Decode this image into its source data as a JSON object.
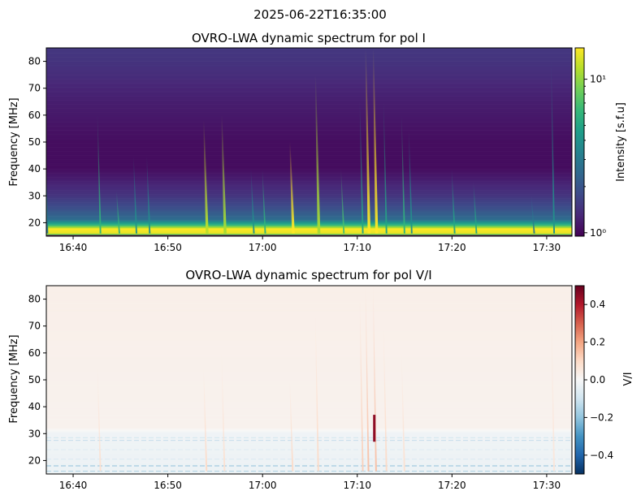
{
  "figure": {
    "suptitle": "2025-06-22T16:35:00"
  },
  "chart_data": [
    {
      "type": "heatmap",
      "title": "OVRO-LWA dynamic spectrum for pol I",
      "xlabel": "",
      "ylabel": "Frequency [MHz]",
      "xlim": [
        "16:37:10",
        "17:32:40"
      ],
      "ylim": [
        15,
        85
      ],
      "xticks": [
        "16:40",
        "16:50",
        "17:00",
        "17:10",
        "17:20",
        "17:30"
      ],
      "yticks": [
        20,
        30,
        40,
        50,
        60,
        70,
        80
      ],
      "colormap": "viridis",
      "colorbar": {
        "label": "Intensity [s.f.u]",
        "scale": "log",
        "range": [
          0.95,
          16
        ],
        "ticks": [
          {
            "value": 1,
            "label": "10⁰"
          },
          {
            "value": 10,
            "label": "10¹"
          }
        ]
      },
      "background_profile": [
        {
          "freq": 15,
          "value": 0.95
        },
        {
          "freq": 15.6,
          "value": 14
        },
        {
          "freq": 17.5,
          "value": 16
        },
        {
          "freq": 19,
          "value": 6
        },
        {
          "freq": 21,
          "value": 2.6
        },
        {
          "freq": 25,
          "value": 1.9
        },
        {
          "freq": 30,
          "value": 1.45
        },
        {
          "freq": 40,
          "value": 1.05
        },
        {
          "freq": 50,
          "value": 1.05
        },
        {
          "freq": 65,
          "value": 1.2
        },
        {
          "freq": 80,
          "value": 1.45
        },
        {
          "freq": 85,
          "value": 1.5
        }
      ],
      "bursts": [
        {
          "time": "16:37:12",
          "fmax": 60,
          "peak": 3
        },
        {
          "time": "16:42:48",
          "fmax": 60,
          "peak": 6
        },
        {
          "time": "16:44:48",
          "fmax": 32,
          "peak": 6
        },
        {
          "time": "16:46:36",
          "fmax": 45,
          "peak": 4
        },
        {
          "time": "16:48:00",
          "fmax": 45,
          "peak": 4
        },
        {
          "time": "16:54:00",
          "fmax": 58,
          "peak": 12
        },
        {
          "time": "16:55:54",
          "fmax": 60,
          "peak": 11
        },
        {
          "time": "16:59:00",
          "fmax": 40,
          "peak": 4
        },
        {
          "time": "17:00:12",
          "fmax": 40,
          "peak": 6
        },
        {
          "time": "17:03:06",
          "fmax": 50,
          "peak": 16
        },
        {
          "time": "17:05:48",
          "fmax": 75,
          "peak": 11
        },
        {
          "time": "17:08:30",
          "fmax": 40,
          "peak": 7
        },
        {
          "time": "17:10:30",
          "fmax": 65,
          "peak": 5
        },
        {
          "time": "17:11:06",
          "fmax": 85,
          "peak": 16
        },
        {
          "time": "17:11:54",
          "fmax": 85,
          "peak": 16
        },
        {
          "time": "17:13:00",
          "fmax": 65,
          "peak": 5
        },
        {
          "time": "17:14:54",
          "fmax": 60,
          "peak": 6
        },
        {
          "time": "17:15:40",
          "fmax": 55,
          "peak": 4
        },
        {
          "time": "17:20:12",
          "fmax": 40,
          "peak": 5
        },
        {
          "time": "17:22:30",
          "fmax": 35,
          "peak": 5
        },
        {
          "time": "17:28:36",
          "fmax": 30,
          "peak": 3
        },
        {
          "time": "17:30:42",
          "fmax": 80,
          "peak": 4
        }
      ]
    },
    {
      "type": "heatmap",
      "title": "OVRO-LWA dynamic spectrum for pol V/I",
      "xlabel": "",
      "ylabel": "Frequency [MHz]",
      "xlim": [
        "16:37:10",
        "17:32:40"
      ],
      "ylim": [
        15,
        85
      ],
      "xticks": [
        "16:40",
        "16:50",
        "17:00",
        "17:10",
        "17:20",
        "17:30"
      ],
      "yticks": [
        20,
        30,
        40,
        50,
        60,
        70,
        80
      ],
      "colormap": "RdBu_r",
      "colorbar": {
        "label": "V/I",
        "scale": "linear",
        "range": [
          -0.5,
          0.5
        ],
        "ticks": [
          {
            "value": 0.4,
            "label": "0.4"
          },
          {
            "value": 0.2,
            "label": "0.2"
          },
          {
            "value": 0,
            "label": "0.0"
          },
          {
            "value": -0.2,
            "label": "−0.2"
          },
          {
            "value": -0.4,
            "label": "−0.4"
          }
        ]
      },
      "background_profile": [
        {
          "freq": 15,
          "value": -0.03
        },
        {
          "freq": 30,
          "value": -0.02
        },
        {
          "freq": 32,
          "value": 0.02
        },
        {
          "freq": 85,
          "value": 0.03
        }
      ],
      "horizontal_lines": [
        {
          "freq": 16,
          "value": -0.2
        },
        {
          "freq": 18,
          "value": -0.25
        },
        {
          "freq": 20.5,
          "value": -0.1
        },
        {
          "freq": 24,
          "value": -0.08
        },
        {
          "freq": 27.5,
          "value": -0.15
        },
        {
          "freq": 28.5,
          "value": -0.12
        }
      ],
      "bursts": [
        {
          "time": "16:42:48",
          "fmax": 55,
          "peak": 0.08
        },
        {
          "time": "16:54:00",
          "fmax": 55,
          "peak": 0.1
        },
        {
          "time": "16:55:54",
          "fmax": 60,
          "peak": 0.08
        },
        {
          "time": "17:03:06",
          "fmax": 50,
          "peak": 0.1
        },
        {
          "time": "17:05:48",
          "fmax": 75,
          "peak": 0.1
        },
        {
          "time": "17:10:30",
          "fmax": 80,
          "peak": 0.12
        },
        {
          "time": "17:11:06",
          "fmax": 85,
          "peak": 0.15
        },
        {
          "time": "17:11:54",
          "fmax": 85,
          "peak": 0.15
        },
        {
          "time": "17:13:00",
          "fmax": 70,
          "peak": 0.1
        },
        {
          "time": "17:14:54",
          "fmax": 60,
          "peak": 0.08
        },
        {
          "time": "17:30:42",
          "fmax": 80,
          "peak": 0.06
        }
      ],
      "spots": [
        {
          "time": "17:11:48",
          "fmin": 27,
          "fmax": 37,
          "value": 0.45
        }
      ]
    }
  ]
}
